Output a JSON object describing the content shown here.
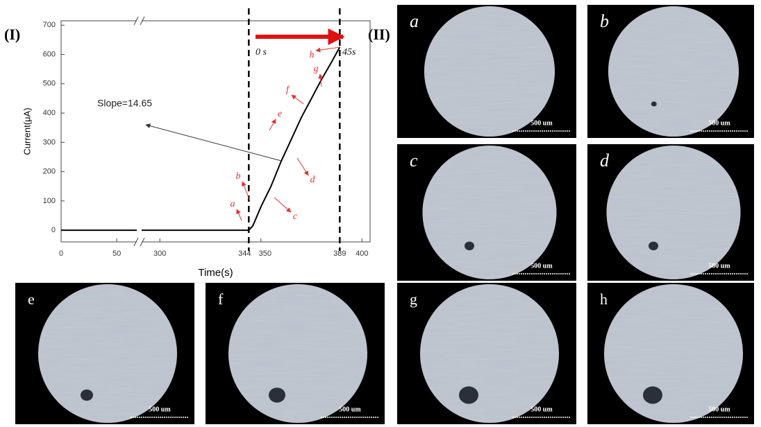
{
  "chart_data": {
    "type": "line",
    "x_label": "Time(s)",
    "y_label": "Current(μA)",
    "xlim": [
      0,
      404
    ],
    "xbreak": [
      68,
      291
    ],
    "ylim": [
      -40,
      715
    ],
    "xticks": [
      0,
      50,
      300,
      344,
      350,
      389,
      400
    ],
    "yticks": [
      0,
      100,
      200,
      300,
      400,
      500,
      600,
      700
    ],
    "x": [
      0,
      344,
      346,
      350,
      355,
      360,
      365,
      370,
      375,
      380,
      385,
      389
    ],
    "series": [
      {
        "color": "#000000",
        "values": [
          0,
          0,
          15,
          80,
          150,
          235,
          310,
          385,
          450,
          515,
          575,
          625
        ]
      }
    ],
    "annotations": [
      "Slope=14.65",
      "0 s",
      "45s",
      "a",
      "b",
      "c",
      "d",
      "e",
      "f",
      "g",
      "h"
    ]
  },
  "figure_labels": [
    "(I)",
    "(II)"
  ],
  "panels": [
    {
      "label": "a",
      "scale": "500 um"
    },
    {
      "label": "b",
      "scale": "500 um"
    },
    {
      "label": "c",
      "scale": "500 um"
    },
    {
      "label": "d",
      "scale": "500 um"
    },
    {
      "label": "e",
      "scale": "500 um"
    },
    {
      "label": "f",
      "scale": "500 um"
    },
    {
      "label": "g",
      "scale": "500 um"
    },
    {
      "label": "h",
      "scale": "500 um"
    }
  ]
}
